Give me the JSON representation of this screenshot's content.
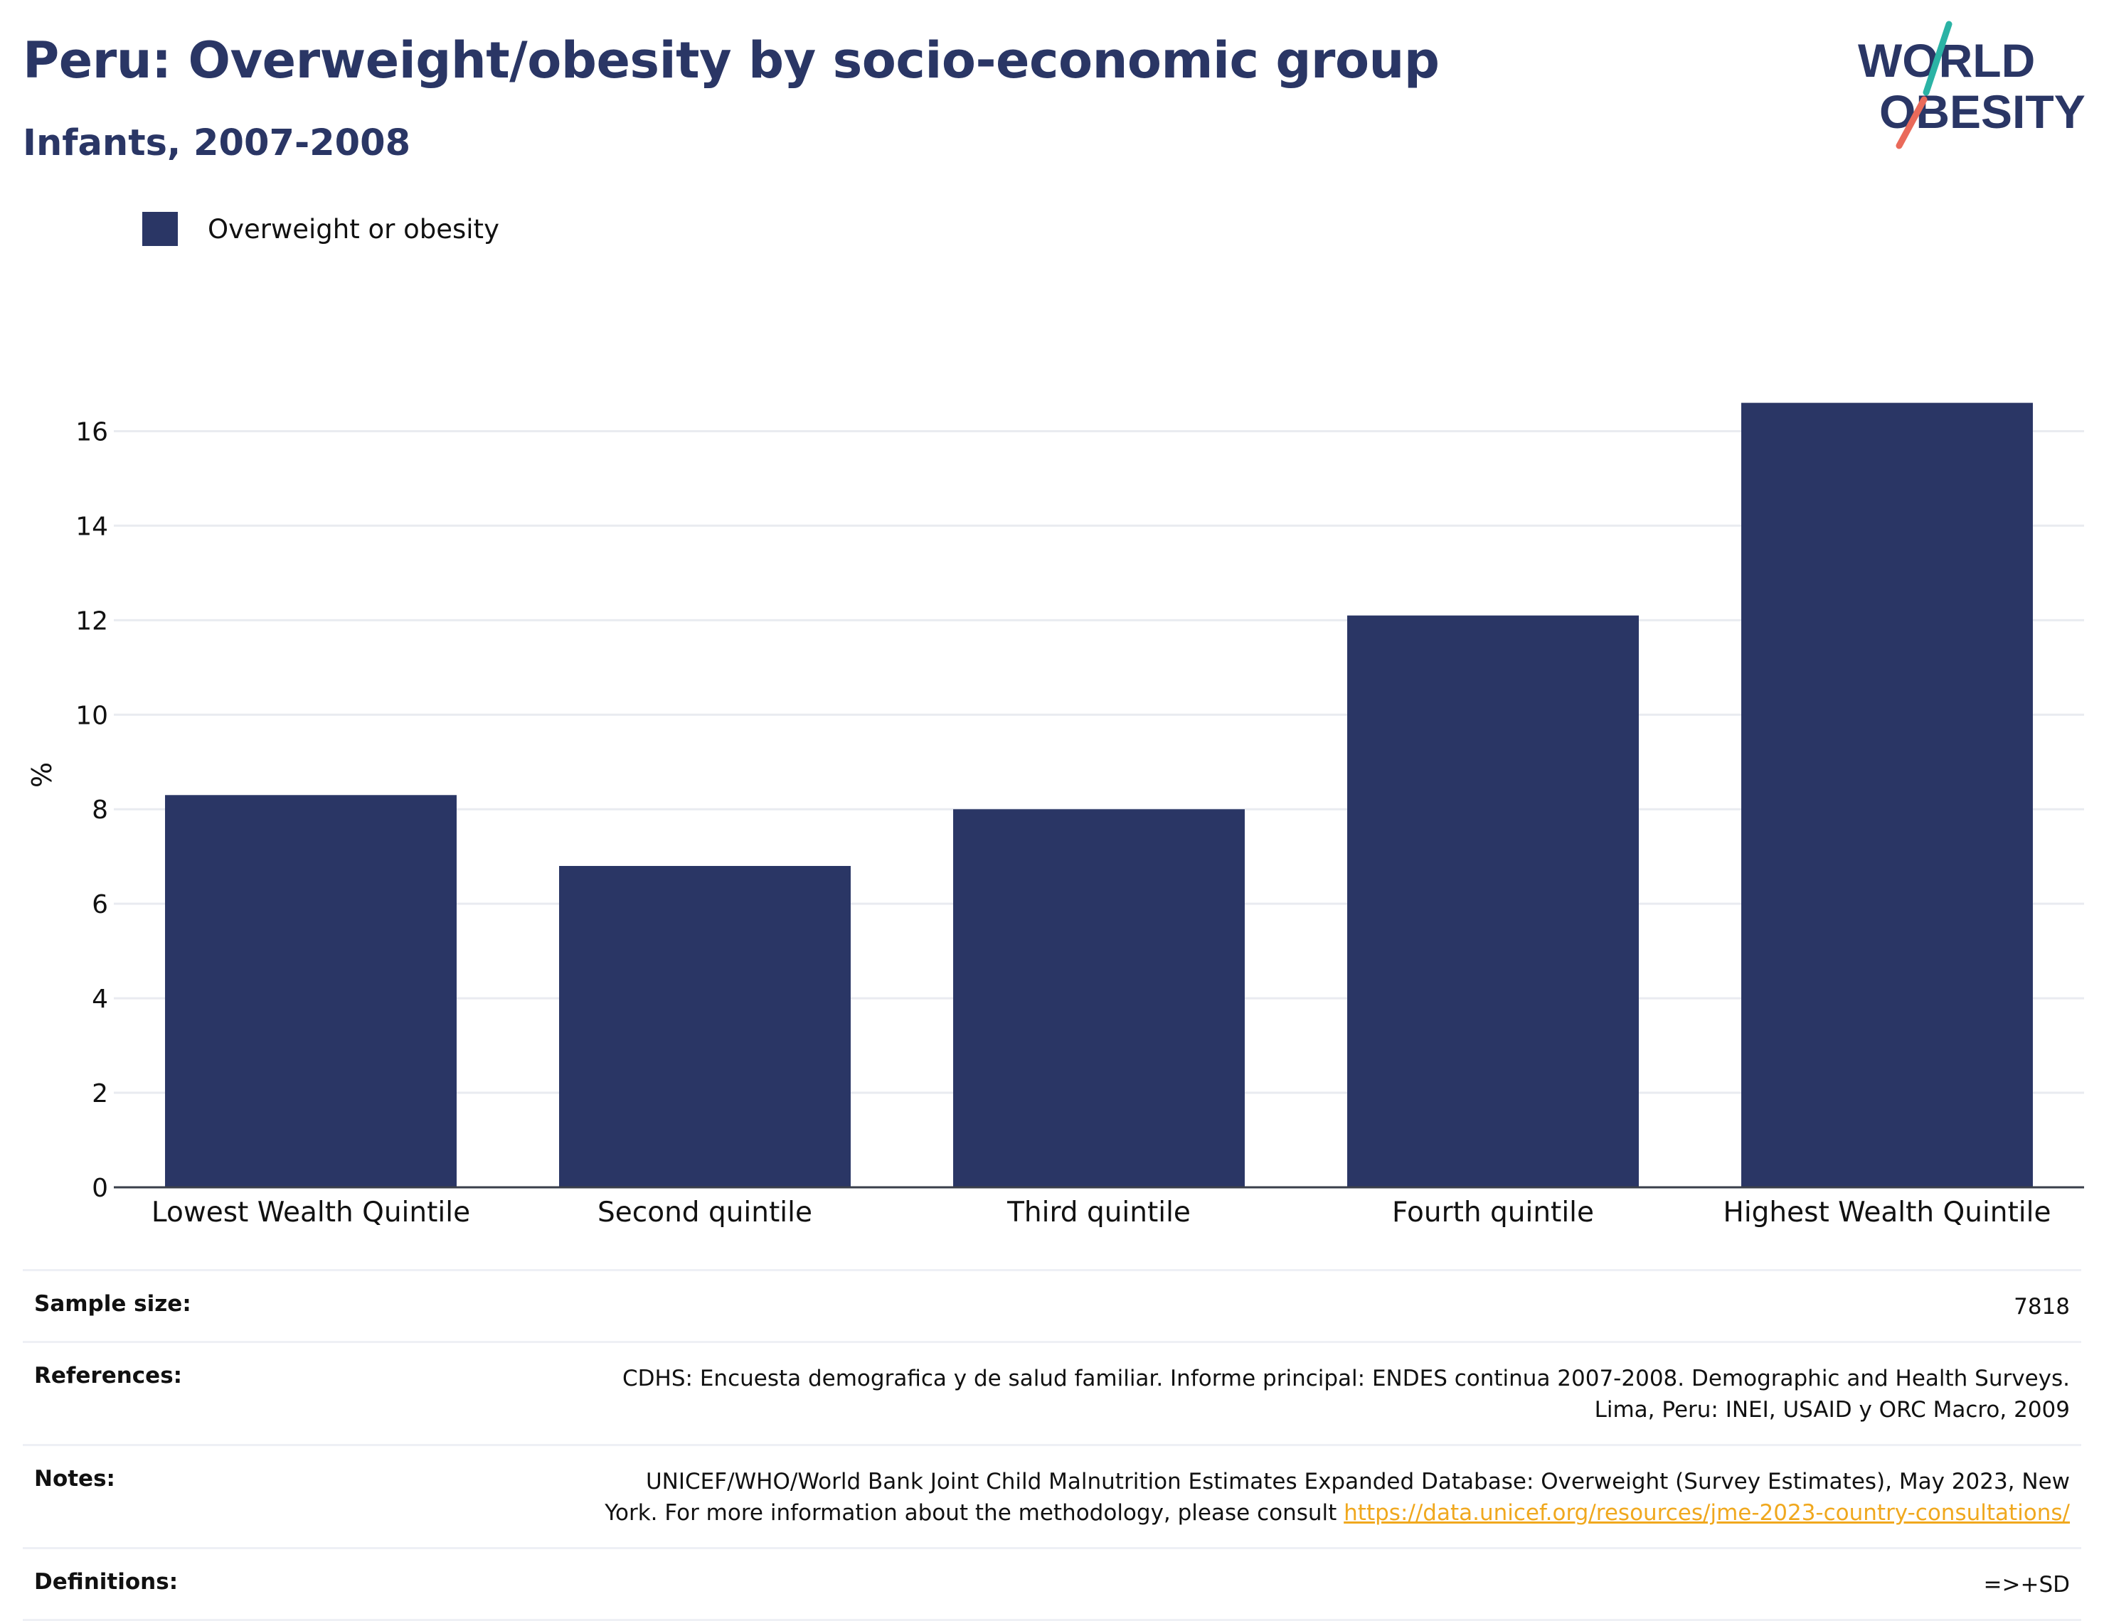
{
  "header": {
    "title": "Peru: Overweight/obesity by socio-economic group",
    "subtitle": "Infants, 2007-2008"
  },
  "logo": {
    "line1": "WORLD",
    "line2": "OBESITY"
  },
  "legend": {
    "label": "Overweight or obesity",
    "color": "#2a3665"
  },
  "chart_data": {
    "type": "bar",
    "title": "Peru: Overweight/obesity by socio-economic group",
    "subtitle": "Infants, 2007-2008",
    "ylabel": "%",
    "xlabel": "",
    "ylim": [
      0,
      17
    ],
    "yticks": [
      0,
      2,
      4,
      6,
      8,
      10,
      12,
      14,
      16
    ],
    "grid": true,
    "legend_position": "top-left",
    "categories": [
      "Lowest Wealth Quintile",
      "Second quintile",
      "Third quintile",
      "Fourth quintile",
      "Highest Wealth Quintile"
    ],
    "series": [
      {
        "name": "Overweight or obesity",
        "values": [
          8.3,
          6.8,
          8.0,
          12.1,
          16.6
        ],
        "color": "#2a3665"
      }
    ]
  },
  "meta": {
    "sample_size_label": "Sample size:",
    "sample_size_value": "7818",
    "references_label": "References:",
    "references_value": "CDHS: Encuesta demografica y de salud familiar. Informe principal: ENDES continua 2007-2008. Demographic and Health Surveys. Lima, Peru: INEI, USAID y ORC Macro, 2009",
    "notes_label": "Notes:",
    "notes_text": "UNICEF/WHO/World Bank Joint Child Malnutrition Estimates Expanded Database: Overweight (Survey Estimates), May 2023, New York. For more information about the methodology, please consult ",
    "notes_link": "https://data.unicef.org/resources/jme-2023-country-consultations/",
    "definitions_label": "Definitions:",
    "definitions_value": "=>+SD"
  }
}
